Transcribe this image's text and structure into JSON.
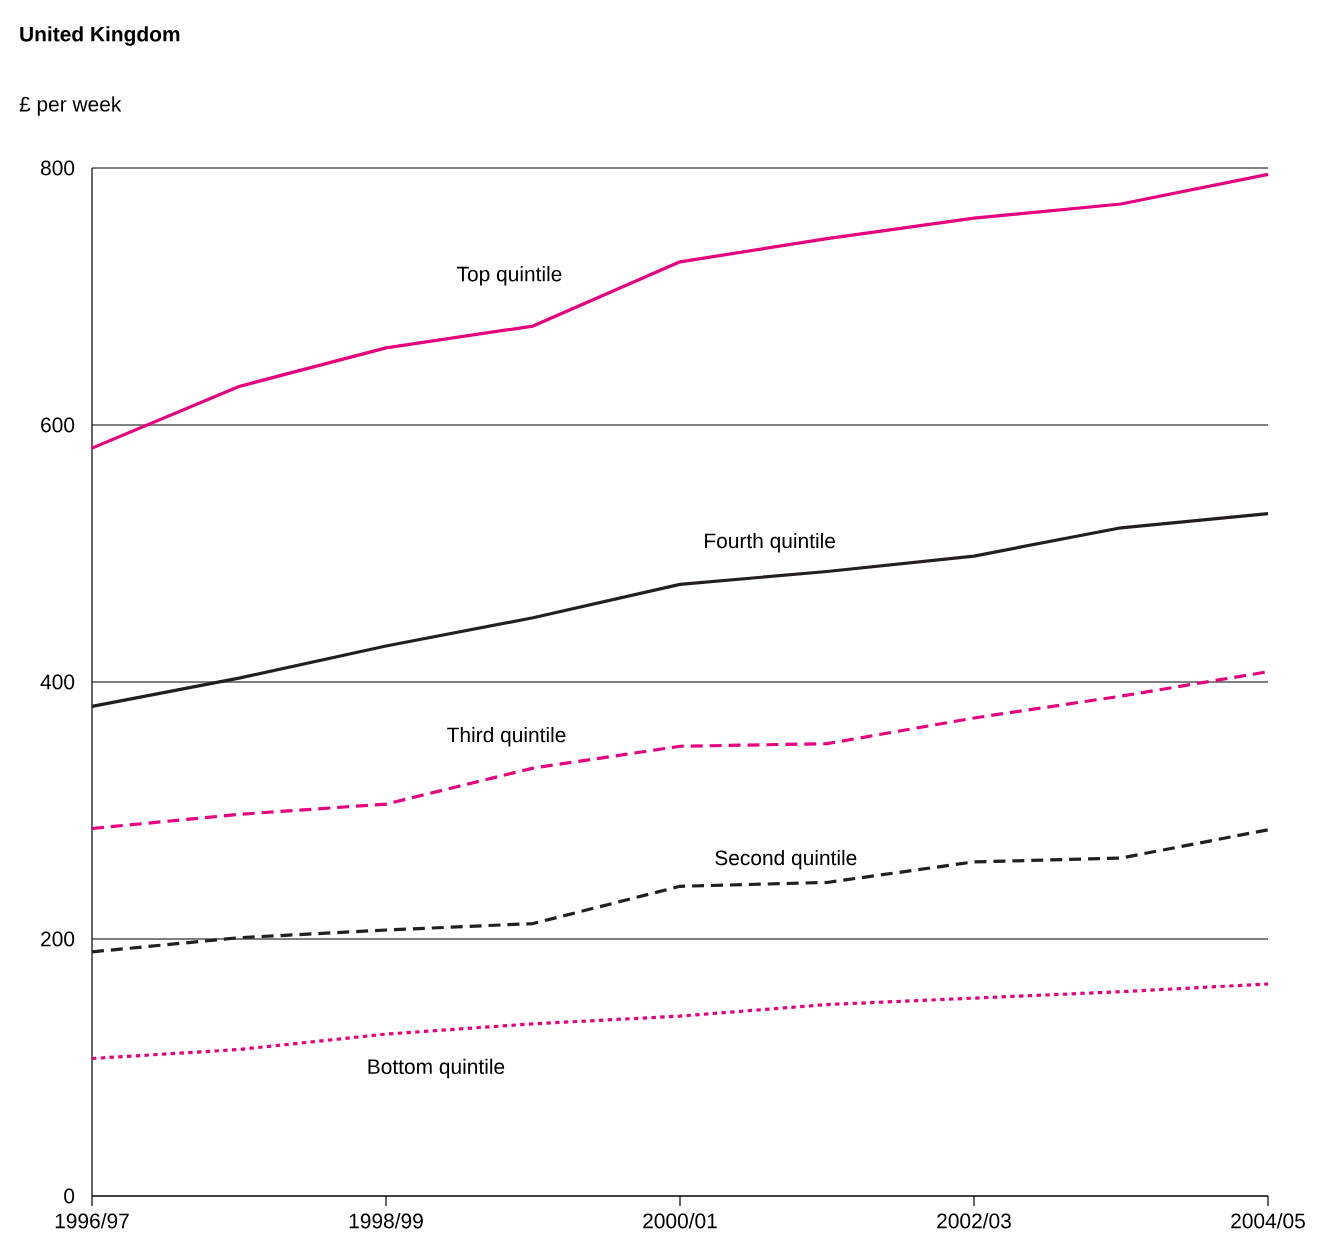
{
  "chart_data": {
    "type": "line",
    "title": "United Kingdom",
    "ylabel": "£ per week",
    "categories": [
      "1996/97",
      null,
      "1998/99",
      null,
      "2000/01",
      null,
      "2002/03",
      null,
      "2004/05"
    ],
    "ylim": [
      0,
      800
    ],
    "yticks": [
      0,
      200,
      400,
      600,
      800
    ],
    "grid": "y",
    "marker": "none",
    "series": [
      {
        "name": "Top quintile",
        "color": "#e6007e",
        "line_style": "solid",
        "values": [
          582,
          630,
          660,
          677,
          727,
          745,
          761,
          772,
          795
        ]
      },
      {
        "name": "Fourth quintile",
        "color": "#231f20",
        "line_style": "solid",
        "values": [
          381,
          403,
          428,
          450,
          476,
          486,
          498,
          520,
          531
        ]
      },
      {
        "name": "Third quintile",
        "color": "#e6007e",
        "line_style": "dashed",
        "values": [
          286,
          297,
          305,
          333,
          350,
          352,
          372,
          389,
          408
        ]
      },
      {
        "name": "Second quintile",
        "color": "#231f20",
        "line_style": "dashed",
        "values": [
          190,
          201,
          207,
          212,
          241,
          244,
          260,
          263,
          285
        ]
      },
      {
        "name": "Bottom quintile",
        "color": "#e6007e",
        "line_style": "dotted",
        "values": [
          107,
          114,
          126,
          134,
          140,
          149,
          154,
          159,
          165
        ]
      }
    ]
  }
}
